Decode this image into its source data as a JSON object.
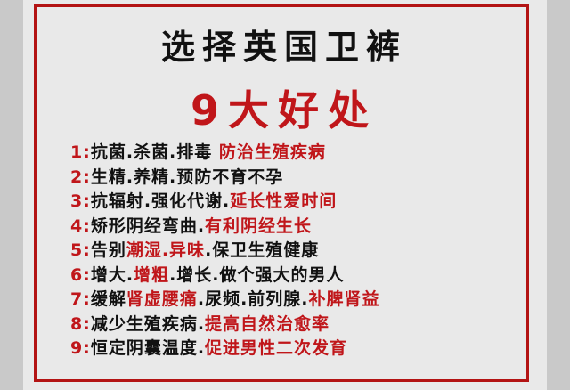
{
  "title_line1": "选择英国卫裤",
  "title_line2": "9大好处",
  "colors": {
    "accent_red": "#c0161a",
    "text": "#111111",
    "background": "#e9e9e9"
  },
  "items": [
    {
      "num": "1:",
      "parts": [
        {
          "text": "抗菌.杀菌.排毒 ",
          "red": false
        },
        {
          "text": "防治生殖疾病",
          "red": true
        }
      ]
    },
    {
      "num": "2:",
      "parts": [
        {
          "text": "生精.养精.预防不育不孕",
          "red": false
        }
      ]
    },
    {
      "num": "3:",
      "parts": [
        {
          "text": "抗辐射.强化代谢.",
          "red": false
        },
        {
          "text": "延长性爱时间",
          "red": true
        }
      ]
    },
    {
      "num": "4:",
      "parts": [
        {
          "text": "矫形阴经弯曲.",
          "red": false
        },
        {
          "text": "有利阴经生长",
          "red": true
        }
      ]
    },
    {
      "num": "5:",
      "parts": [
        {
          "text": "告别",
          "red": false
        },
        {
          "text": "潮湿.异味",
          "red": true
        },
        {
          "text": ".保卫生殖健康",
          "red": false
        }
      ]
    },
    {
      "num": "6:",
      "parts": [
        {
          "text": "增大.",
          "red": false
        },
        {
          "text": "增粗",
          "red": true
        },
        {
          "text": ".增长.做个强大的男人",
          "red": false
        }
      ]
    },
    {
      "num": "7:",
      "parts": [
        {
          "text": "缓解",
          "red": false
        },
        {
          "text": "肾虚腰痛",
          "red": true
        },
        {
          "text": ".尿频.前列腺.",
          "red": false
        },
        {
          "text": "补脾肾益",
          "red": true
        }
      ]
    },
    {
      "num": "8:",
      "parts": [
        {
          "text": "减少生殖疾病.",
          "red": false
        },
        {
          "text": "提高自然治愈率",
          "red": true
        }
      ]
    },
    {
      "num": "9:",
      "parts": [
        {
          "text": "恒定阴囊温度.",
          "red": false
        },
        {
          "text": "促进男性二次发育",
          "red": true
        }
      ]
    }
  ]
}
